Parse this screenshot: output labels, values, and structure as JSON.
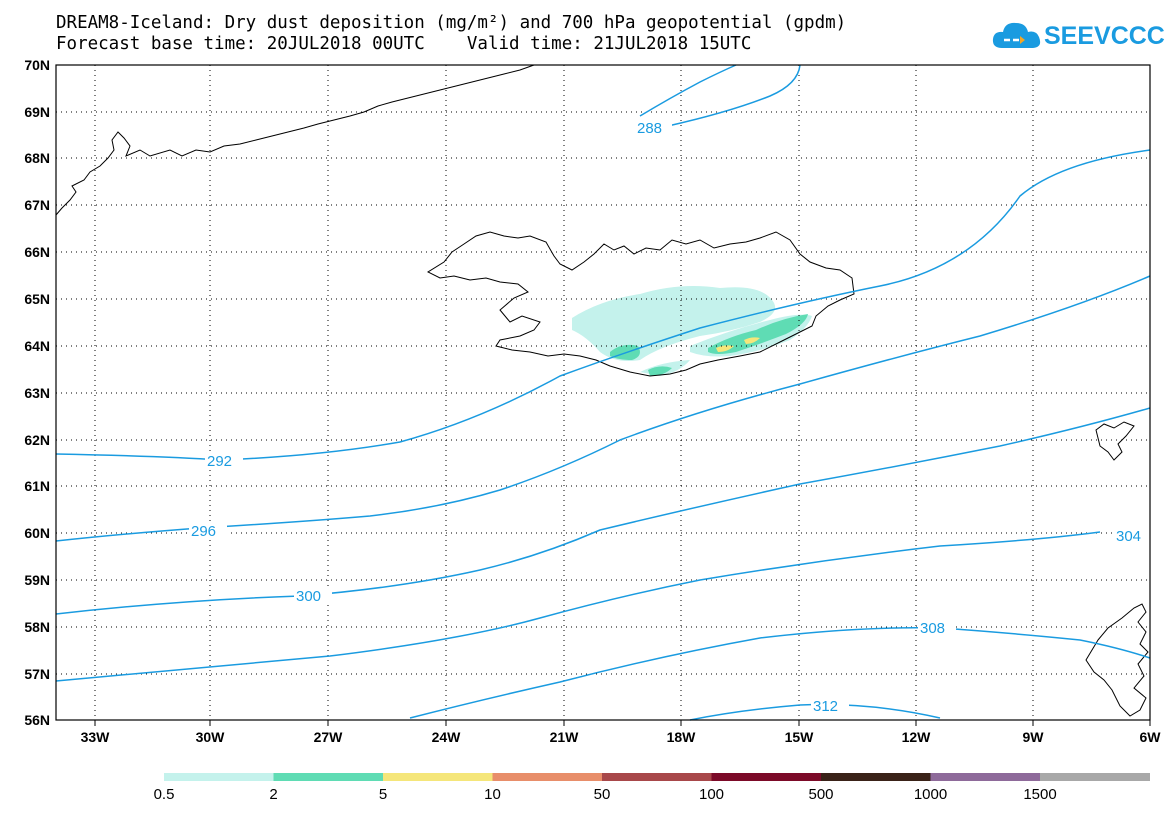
{
  "title": {
    "line1": "DREAM8-Iceland: Dry dust deposition (mg/m²) and 700 hPa geopotential (gpdm)",
    "line2": "Forecast base time: 20JUL2018 00UTC    Valid time: 21JUL2018 15UTC"
  },
  "logo": {
    "text": "SEEVCCC",
    "color": "#1a9be0"
  },
  "map": {
    "lon_labels": [
      "33W",
      "30W",
      "27W",
      "24W",
      "21W",
      "18W",
      "15W",
      "12W",
      "9W",
      "6W"
    ],
    "lat_labels": [
      "70N",
      "69N",
      "68N",
      "67N",
      "66N",
      "65N",
      "64N",
      "63N",
      "62N",
      "61N",
      "60N",
      "59N",
      "58N",
      "57N",
      "56N"
    ],
    "contour_color": "#1a9be0",
    "contour_labels": [
      "288",
      "292",
      "296",
      "300",
      "304",
      "308",
      "312"
    ]
  },
  "colorbar": {
    "labels": [
      "0.5",
      "2",
      "5",
      "10",
      "50",
      "100",
      "500",
      "1000",
      "1500"
    ],
    "colors": [
      "#c4f2ec",
      "#5fdcb4",
      "#f5e67a",
      "#e88e6a",
      "#a8484a",
      "#7c0a28",
      "#3a2218",
      "#8e6a9a",
      "#a8a8a8"
    ]
  }
}
